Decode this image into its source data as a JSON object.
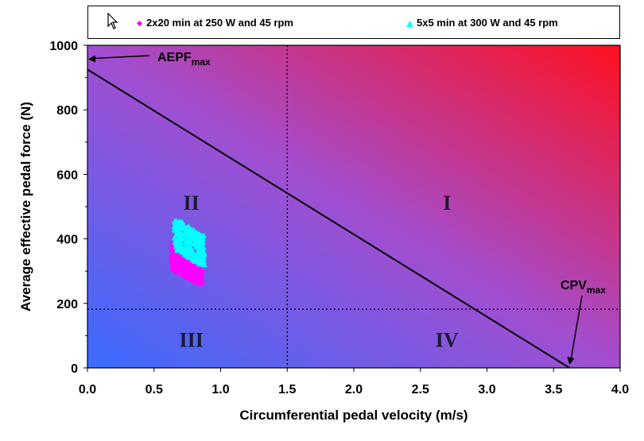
{
  "chart_data": {
    "type": "scatter",
    "title": "",
    "xlabel": "Circumferential pedal velocity (m/s)",
    "ylabel": "Average effective pedal force (N)",
    "xlim": [
      0,
      4
    ],
    "ylim": [
      0,
      1000
    ],
    "xticks": [
      "0.0",
      "0.5",
      "1.0",
      "1.5",
      "2.0",
      "2.5",
      "3.0",
      "3.5",
      "4.0"
    ],
    "yticks": [
      "0",
      "200",
      "400",
      "600",
      "800",
      "1000"
    ],
    "legend_position": "top",
    "background": "gradient from blue (bottom-left) to red (top-right)",
    "series": [
      {
        "name": "2x20 min at 250 W and 45 rpm",
        "marker": "diamond",
        "color": "#ff00ff",
        "x_range": [
          0.63,
          0.87
        ],
        "y_range": [
          260,
          390
        ]
      },
      {
        "name": "5x5 min at 300 W and 45 rpm",
        "marker": "triangle",
        "color": "#00ffff",
        "x_range": [
          0.65,
          0.88
        ],
        "y_range": [
          320,
          455
        ]
      }
    ],
    "lines": [
      {
        "type": "force-velocity",
        "x": [
          0.0,
          3.62
        ],
        "y": [
          925,
          0
        ]
      },
      {
        "type": "dotted-vertical",
        "x": 1.5
      },
      {
        "type": "dotted-horizontal",
        "y": 182
      }
    ],
    "regions": [
      "I",
      "II",
      "III",
      "IV"
    ],
    "annotations": {
      "aepf": {
        "main": "AEPF",
        "sub": "max",
        "target": [
          0.0,
          925
        ]
      },
      "cpv": {
        "main": "CPV",
        "sub": "max",
        "target": [
          3.62,
          0
        ]
      }
    }
  }
}
